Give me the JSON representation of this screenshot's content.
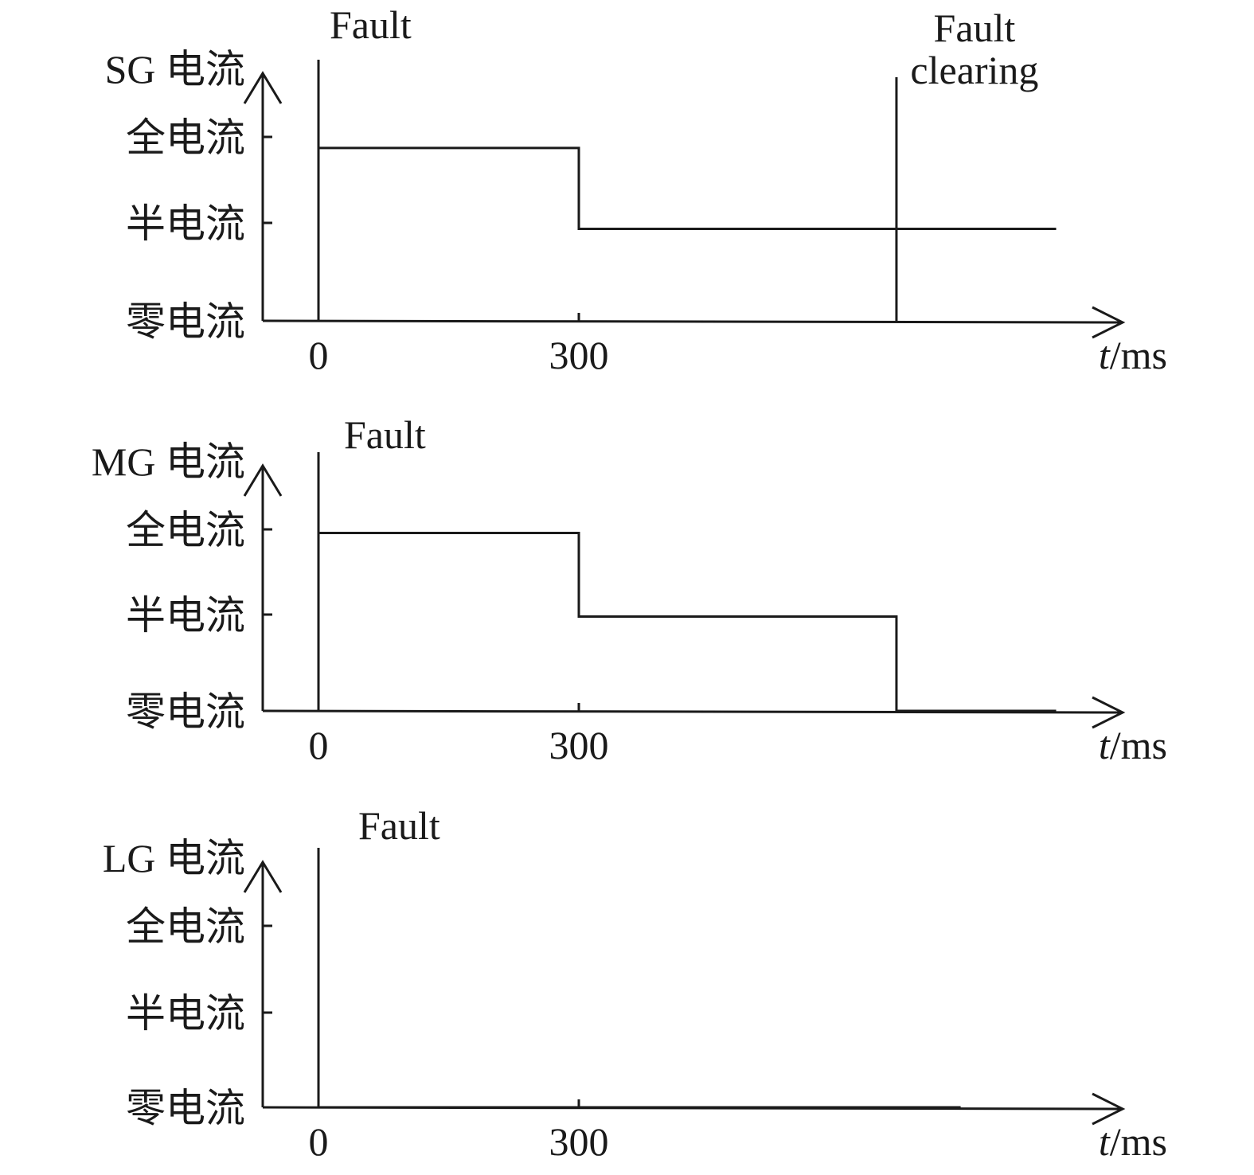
{
  "chart_data": [
    {
      "type": "line",
      "ylabel": "SG 电流",
      "xlabel_italic": "t",
      "xlabel_unit": "/ms",
      "y_levels": [
        "全电流",
        "半电流",
        "零电流"
      ],
      "x_ticks": [
        "0",
        "300"
      ],
      "annotations": [
        {
          "lines": [
            "Fault"
          ],
          "x": 0
        },
        {
          "lines": [
            "Fault",
            "clearing"
          ],
          "x": 666
        }
      ],
      "series": [
        {
          "x": [
            0,
            300,
            300,
            850
          ],
          "y": [
            0.94,
            0.94,
            0.5,
            0.5
          ]
        }
      ]
    },
    {
      "type": "line",
      "ylabel": "MG 电流",
      "xlabel_italic": "t",
      "xlabel_unit": "/ms",
      "y_levels": [
        "全电流",
        "半电流",
        "零电流"
      ],
      "x_ticks": [
        "0",
        "300"
      ],
      "annotations": [
        {
          "lines": [
            "Fault"
          ],
          "x": 0
        }
      ],
      "series": [
        {
          "x": [
            0,
            300,
            300,
            666,
            666,
            850
          ],
          "y": [
            0.98,
            0.98,
            0.52,
            0.52,
            0,
            0
          ]
        }
      ]
    },
    {
      "type": "line",
      "ylabel": "LG 电流",
      "xlabel_italic": "t",
      "xlabel_unit": "/ms",
      "y_levels": [
        "全电流",
        "半电流",
        "零电流"
      ],
      "x_ticks": [
        "0",
        "300"
      ],
      "annotations": [
        {
          "lines": [
            "Fault"
          ],
          "x": 0
        }
      ],
      "series": [
        {
          "x": [
            0,
            740
          ],
          "y": [
            0,
            0
          ]
        }
      ]
    }
  ]
}
